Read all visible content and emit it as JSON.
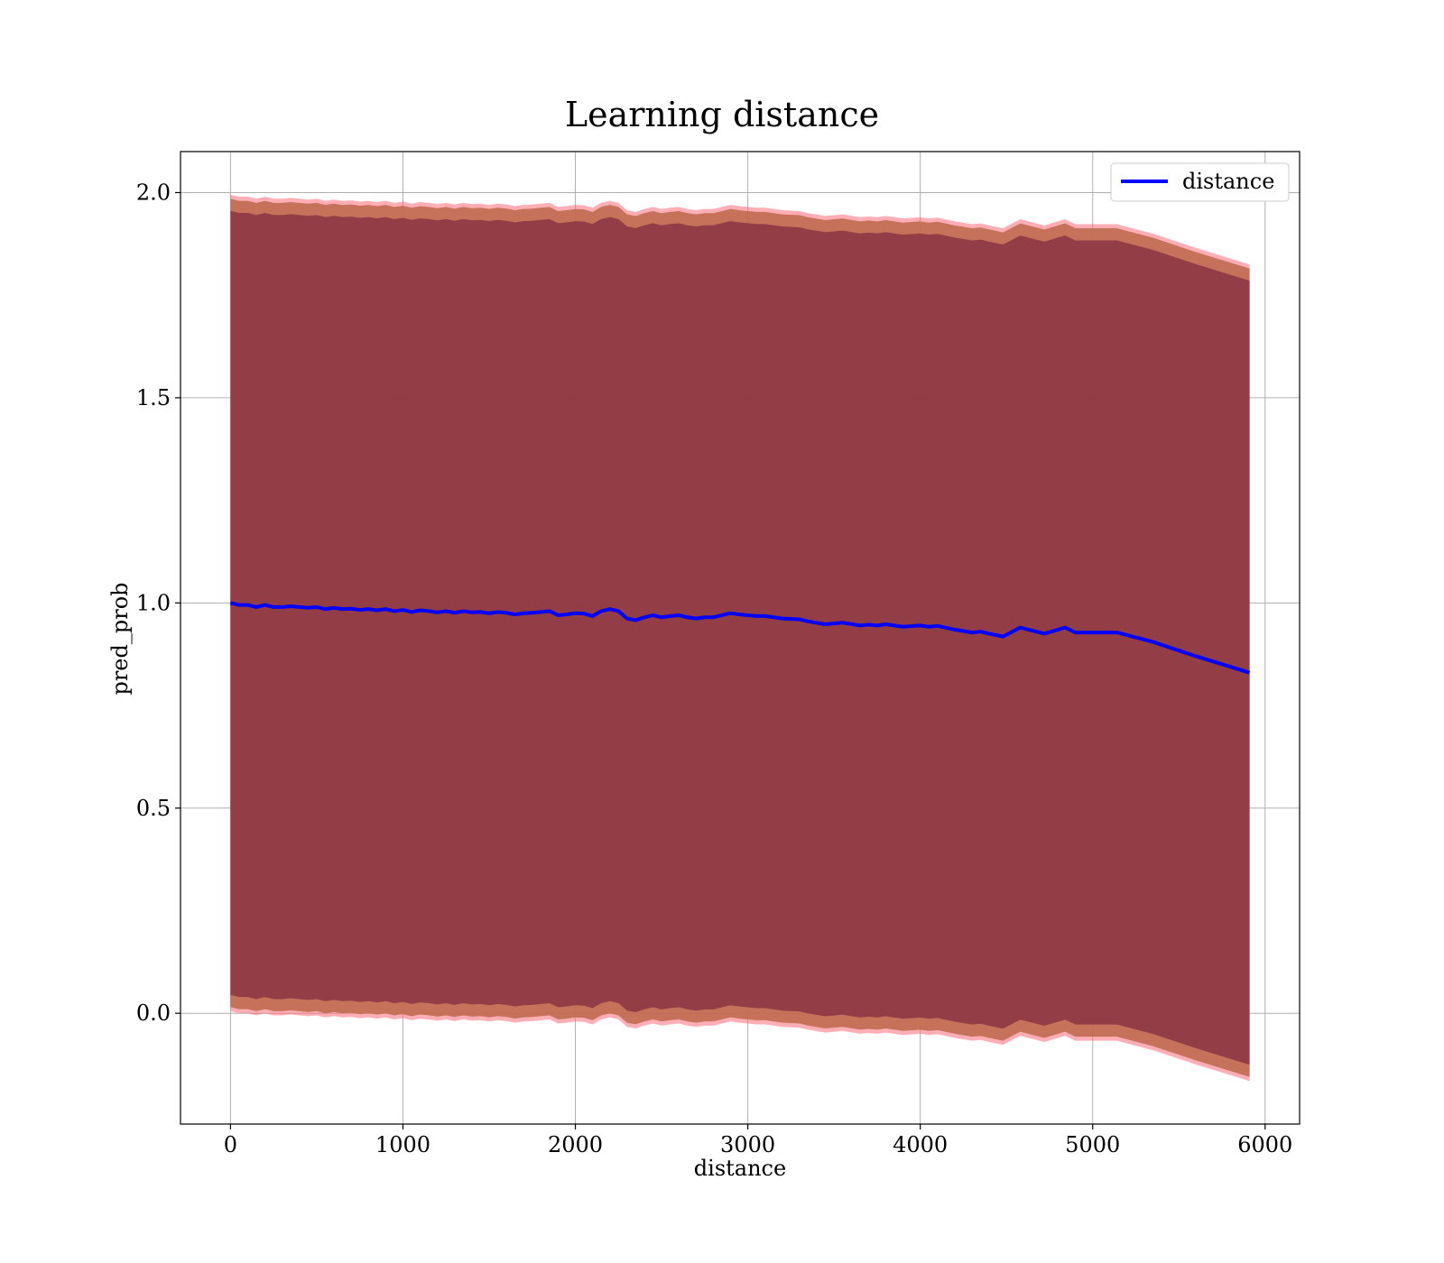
{
  "chart_data": {
    "type": "line",
    "title": "Learning distance",
    "xlabel": "distance",
    "ylabel": "pred_prob",
    "xlim": [
      -290,
      6200
    ],
    "ylim": [
      -0.27,
      2.1
    ],
    "xticks": [
      0,
      1000,
      2000,
      3000,
      4000,
      5000,
      6000
    ],
    "xtick_labels": [
      "0",
      "1000",
      "2000",
      "3000",
      "4000",
      "5000",
      "6000"
    ],
    "yticks": [
      0.0,
      0.5,
      1.0,
      1.5,
      2.0
    ],
    "ytick_labels": [
      "0.0",
      "0.5",
      "1.0",
      "1.5",
      "2.0"
    ],
    "grid": true,
    "legend": {
      "position": "top-right",
      "entries": [
        "distance"
      ]
    },
    "colors": {
      "line": "#0000ff",
      "band_dark": "#7f2a40",
      "band_mid": "#c06a50",
      "band_edge": "#ff6b7a"
    },
    "series": [
      {
        "name": "distance",
        "x": [
          0,
          50,
          100,
          150,
          200,
          250,
          300,
          350,
          400,
          450,
          500,
          550,
          600,
          650,
          700,
          750,
          800,
          850,
          900,
          950,
          1000,
          1050,
          1100,
          1150,
          1200,
          1250,
          1300,
          1350,
          1400,
          1450,
          1500,
          1550,
          1600,
          1650,
          1700,
          1750,
          1800,
          1850,
          1900,
          1950,
          2000,
          2050,
          2100,
          2150,
          2200,
          2250,
          2300,
          2350,
          2400,
          2450,
          2500,
          2550,
          2600,
          2650,
          2700,
          2750,
          2800,
          2850,
          2900,
          2950,
          3000,
          3050,
          3100,
          3150,
          3200,
          3300,
          3350,
          3450,
          3550,
          3650,
          3700,
          3750,
          3800,
          3900,
          4000,
          4050,
          4100,
          4200,
          4300,
          4350,
          4400,
          4480,
          4580,
          4720,
          4840,
          4900,
          5000,
          5140,
          5350,
          5600,
          5910
        ],
        "y": [
          1.0,
          0.995,
          0.995,
          0.99,
          0.995,
          0.99,
          0.99,
          0.992,
          0.99,
          0.988,
          0.99,
          0.985,
          0.988,
          0.985,
          0.986,
          0.983,
          0.985,
          0.982,
          0.985,
          0.98,
          0.983,
          0.978,
          0.982,
          0.98,
          0.977,
          0.98,
          0.976,
          0.98,
          0.977,
          0.978,
          0.975,
          0.978,
          0.976,
          0.972,
          0.975,
          0.976,
          0.978,
          0.98,
          0.97,
          0.972,
          0.975,
          0.974,
          0.968,
          0.98,
          0.985,
          0.98,
          0.962,
          0.958,
          0.965,
          0.97,
          0.965,
          0.968,
          0.97,
          0.965,
          0.962,
          0.965,
          0.965,
          0.97,
          0.975,
          0.972,
          0.97,
          0.968,
          0.968,
          0.965,
          0.962,
          0.96,
          0.955,
          0.948,
          0.952,
          0.945,
          0.947,
          0.945,
          0.948,
          0.942,
          0.945,
          0.942,
          0.944,
          0.935,
          0.928,
          0.93,
          0.925,
          0.918,
          0.94,
          0.925,
          0.94,
          0.928,
          0.928,
          0.928,
          0.905,
          0.87,
          0.83
        ],
        "band_width": [
          0.98,
          0.98,
          0.98,
          0.98,
          0.98,
          0.98,
          0.98,
          0.98,
          0.98,
          0.98,
          0.98,
          0.98,
          0.98,
          0.98,
          0.98,
          0.98,
          0.98,
          0.98,
          0.98,
          0.98,
          0.98,
          0.98,
          0.98,
          0.98,
          0.98,
          0.98,
          0.98,
          0.98,
          0.98,
          0.98,
          0.98,
          0.98,
          0.98,
          0.98,
          0.98,
          0.98,
          0.98,
          0.98,
          0.98,
          0.98,
          0.98,
          0.98,
          0.98,
          0.98,
          0.98,
          0.98,
          0.98,
          0.98,
          0.98,
          0.98,
          0.98,
          0.98,
          0.98,
          0.98,
          0.98,
          0.98,
          0.98,
          0.98,
          0.98,
          0.98,
          0.98,
          0.98,
          0.98,
          0.98,
          0.98,
          0.98,
          0.98,
          0.98,
          0.98,
          0.98,
          0.98,
          0.98,
          0.98,
          0.98,
          0.98,
          0.98,
          0.98,
          0.98,
          0.98,
          0.98,
          0.98,
          0.98,
          0.98,
          0.98,
          0.98,
          0.98,
          0.98,
          0.98,
          0.98,
          0.98,
          0.98
        ]
      }
    ]
  }
}
